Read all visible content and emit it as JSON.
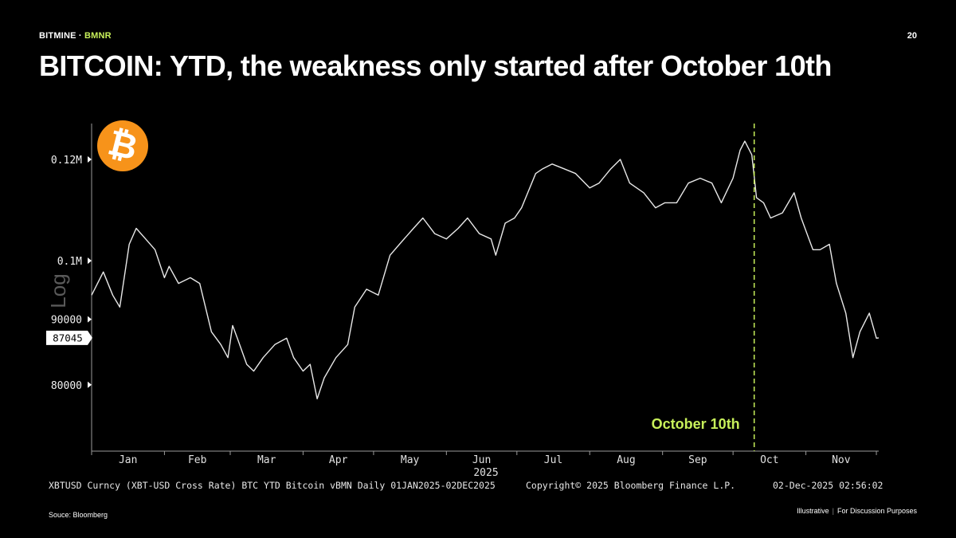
{
  "header": {
    "brand": "BITMINE",
    "separator": "·",
    "ticker": "BMNR",
    "page_number": "20",
    "title": "BITCOIN: YTD, the weakness only started after October 10th"
  },
  "logo": {
    "glyph": "₿",
    "color": "#f7931a"
  },
  "chart_data": {
    "type": "line",
    "style": "daily price bars",
    "ylabel": "Log",
    "y_scale": "log",
    "ylim": [
      71000,
      128000
    ],
    "y_ticks": [
      {
        "value": 120000,
        "label": "0.12M"
      },
      {
        "value": 100000,
        "label": "0.1M"
      },
      {
        "value": 90000,
        "label": "90000"
      },
      {
        "value": 80000,
        "label": "80000"
      }
    ],
    "x_tick_labels": [
      "Jan",
      "Feb",
      "Mar",
      "Apr",
      "May",
      "Jun",
      "Jul",
      "Aug",
      "Sep",
      "Oct",
      "Nov"
    ],
    "x_year_label": "2025",
    "last_value_label": "87045",
    "last_value": 87045,
    "annotation": {
      "label": "October 10th",
      "date": "2025-10-10",
      "color": "#c8f05a"
    },
    "series": [
      {
        "x": [
          "2025-01-01",
          "2025-01-06",
          "2025-01-10",
          "2025-01-13",
          "2025-01-17",
          "2025-01-20",
          "2025-01-24",
          "2025-01-28",
          "2025-02-01",
          "2025-02-03",
          "2025-02-07",
          "2025-02-12",
          "2025-02-16",
          "2025-02-21",
          "2025-02-25",
          "2025-02-28",
          "2025-03-02",
          "2025-03-04",
          "2025-03-08",
          "2025-03-11",
          "2025-03-15",
          "2025-03-20",
          "2025-03-25",
          "2025-03-28",
          "2025-04-01",
          "2025-04-04",
          "2025-04-07",
          "2025-04-10",
          "2025-04-15",
          "2025-04-20",
          "2025-04-23",
          "2025-04-28",
          "2025-05-03",
          "2025-05-08",
          "2025-05-12",
          "2025-05-18",
          "2025-05-22",
          "2025-05-27",
          "2025-06-01",
          "2025-06-06",
          "2025-06-10",
          "2025-06-15",
          "2025-06-20",
          "2025-06-22",
          "2025-06-26",
          "2025-06-30",
          "2025-07-03",
          "2025-07-09",
          "2025-07-12",
          "2025-07-16",
          "2025-07-21",
          "2025-07-26",
          "2025-08-01",
          "2025-08-05",
          "2025-08-10",
          "2025-08-14",
          "2025-08-18",
          "2025-08-24",
          "2025-08-29",
          "2025-09-02",
          "2025-09-07",
          "2025-09-12",
          "2025-09-17",
          "2025-09-22",
          "2025-09-26",
          "2025-10-01",
          "2025-10-04",
          "2025-10-06",
          "2025-10-09",
          "2025-10-11",
          "2025-10-14",
          "2025-10-17",
          "2025-10-22",
          "2025-10-27",
          "2025-10-30",
          "2025-11-04",
          "2025-11-07",
          "2025-11-11",
          "2025-11-14",
          "2025-11-18",
          "2025-11-21",
          "2025-11-24",
          "2025-11-28",
          "2025-12-01",
          "2025-12-02"
        ],
        "values": [
          94000,
          98000,
          94000,
          92000,
          103000,
          106000,
          104000,
          102000,
          97000,
          99000,
          96000,
          97000,
          96000,
          88000,
          86000,
          84000,
          89000,
          87000,
          83000,
          82000,
          84000,
          86000,
          87000,
          84000,
          82000,
          83000,
          78000,
          81000,
          84000,
          86000,
          92000,
          95000,
          94000,
          101000,
          103000,
          106000,
          108000,
          105000,
          104000,
          106000,
          108000,
          105000,
          104000,
          101000,
          107000,
          108000,
          110000,
          117000,
          118000,
          119000,
          118000,
          117000,
          114000,
          115000,
          118000,
          120000,
          115000,
          113000,
          110000,
          111000,
          111000,
          115000,
          116000,
          115000,
          111000,
          116000,
          122000,
          124000,
          121000,
          112000,
          111000,
          108000,
          109000,
          113000,
          108000,
          102000,
          102000,
          103000,
          96000,
          91000,
          84000,
          88000,
          91000,
          87000,
          87045
        ]
      }
    ]
  },
  "footer": {
    "description": "XBTUSD Curncy (XBT-USD Cross Rate) BTC YTD Bitcoin vBMN Daily 01JAN2025-02DEC2025",
    "copyright": "Copyright© 2025 Bloomberg Finance L.P.",
    "timestamp": "02-Dec-2025 02:56:02",
    "source": "Souce: Bloomberg",
    "disclaimer_1": "Illustrative",
    "disclaimer_sep": "|",
    "disclaimer_2": "For Discussion Purposes"
  },
  "colors": {
    "accent": "#c8f05a",
    "background": "#000000",
    "price": "#e8e8e8",
    "axis": "#9a9a9a"
  }
}
